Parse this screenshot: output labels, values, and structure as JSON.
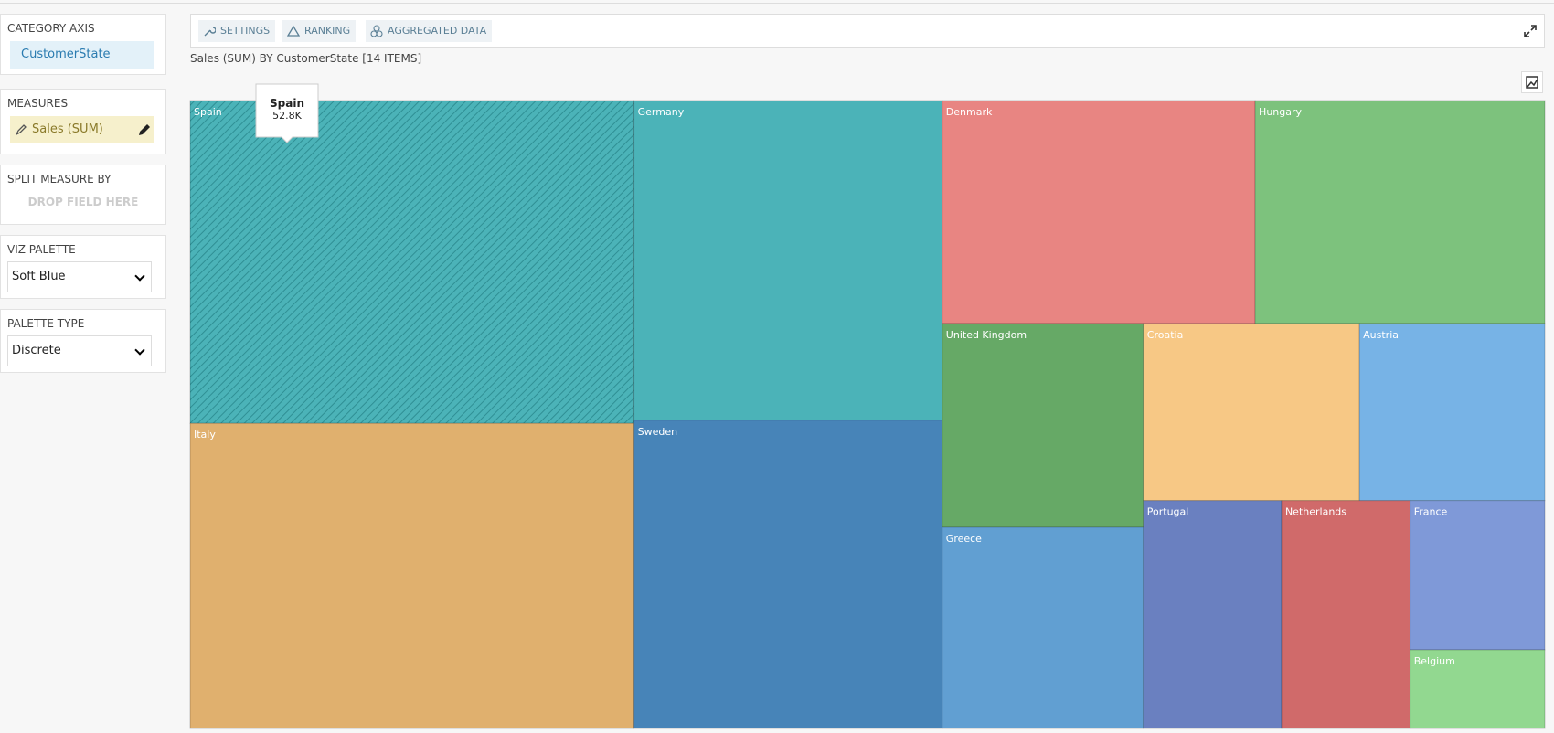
{
  "sidebar": {
    "category_axis": {
      "title": "CATEGORY AXIS",
      "field": "CustomerState"
    },
    "measures": {
      "title": "MEASURES",
      "field": "Sales (SUM)"
    },
    "split": {
      "title": "SPLIT MEASURE BY",
      "placeholder": "DROP FIELD HERE"
    },
    "viz_palette": {
      "title": "VIZ PALETTE",
      "value": "Soft Blue"
    },
    "palette_type": {
      "title": "PALETTE TYPE",
      "value": "Discrete"
    }
  },
  "toolbar": {
    "buttons": [
      "SETTINGS",
      "RANKING",
      "AGGREGATED DATA"
    ]
  },
  "chart_data": {
    "type": "treemap",
    "title": "Sales (SUM) BY CustomerState [14 ITEMS]",
    "categories": [
      "Spain",
      "Italy",
      "Germany",
      "Sweden",
      "Denmark",
      "Hungary",
      "United Kingdom",
      "Greece",
      "Croatia",
      "Austria",
      "Portugal",
      "Netherlands",
      "France",
      "Belgium"
    ],
    "values": [
      52800,
      49900,
      36300,
      35000,
      25700,
      23800,
      15100,
      14900,
      14100,
      12100,
      11600,
      10800,
      7400,
      3900
    ],
    "value_labels": [
      "52.8K",
      null,
      null,
      null,
      null,
      null,
      null,
      null,
      null,
      null,
      null,
      null,
      null,
      null
    ],
    "colors": [
      "#4bb3b8",
      "#e0b06e",
      "#4bb3b8",
      "#4784b8",
      "#e88582",
      "#7dc27d",
      "#66a966",
      "#619fd2",
      "#f7c885",
      "#77b3e6",
      "#6a80c0",
      "#d06a6a",
      "#7f99d8",
      "#92d890"
    ]
  }
}
